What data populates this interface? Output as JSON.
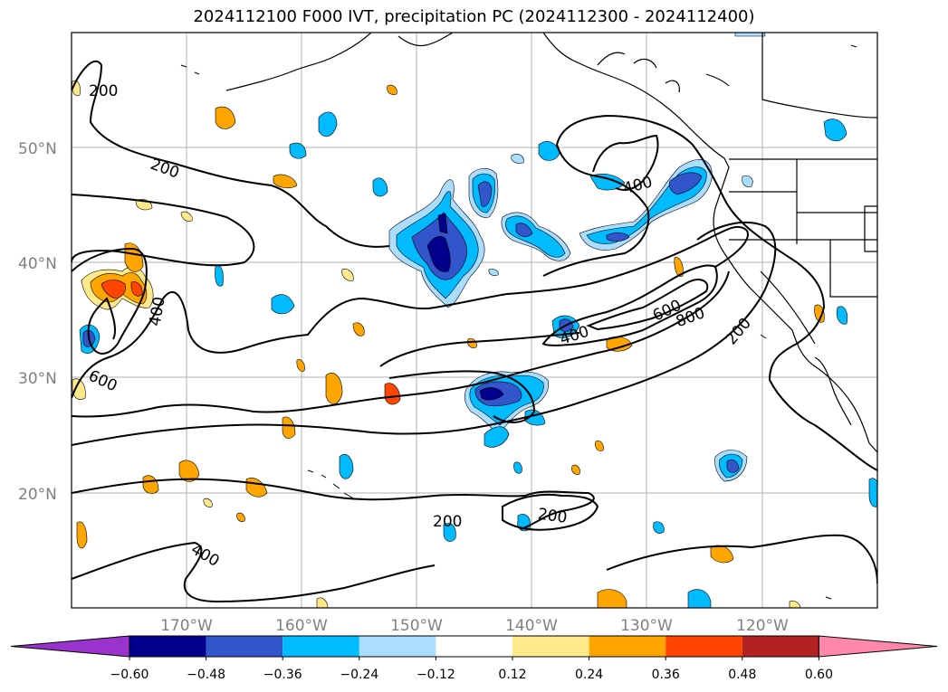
{
  "title": "2024112100 F000 IVT, precipitation PC (2024112300 - 2024112400)",
  "latitude_labels": [
    "50°N",
    "40°N",
    "30°N",
    "20°N"
  ],
  "longitude_labels": [
    "170°W",
    "160°W",
    "150°W",
    "140°W",
    "130°W",
    "120°W"
  ],
  "contour_labels": [
    "200",
    "200",
    "400",
    "600",
    "400",
    "400",
    "600",
    "800",
    "200",
    "200",
    "200",
    "400"
  ],
  "colorbar": {
    "colors": [
      "#9933cc",
      "#00008b",
      "#3355cc",
      "#00bbff",
      "#aaddff",
      "#ffffff",
      "#ffe98a",
      "#ffa500",
      "#ff4500",
      "#b22222",
      "#ff88aa"
    ],
    "tick_labels": [
      "−0.60",
      "−0.48",
      "−0.36",
      "−0.24",
      "−0.12",
      "0.12",
      "0.24",
      "0.36",
      "0.48",
      "0.60"
    ]
  }
}
